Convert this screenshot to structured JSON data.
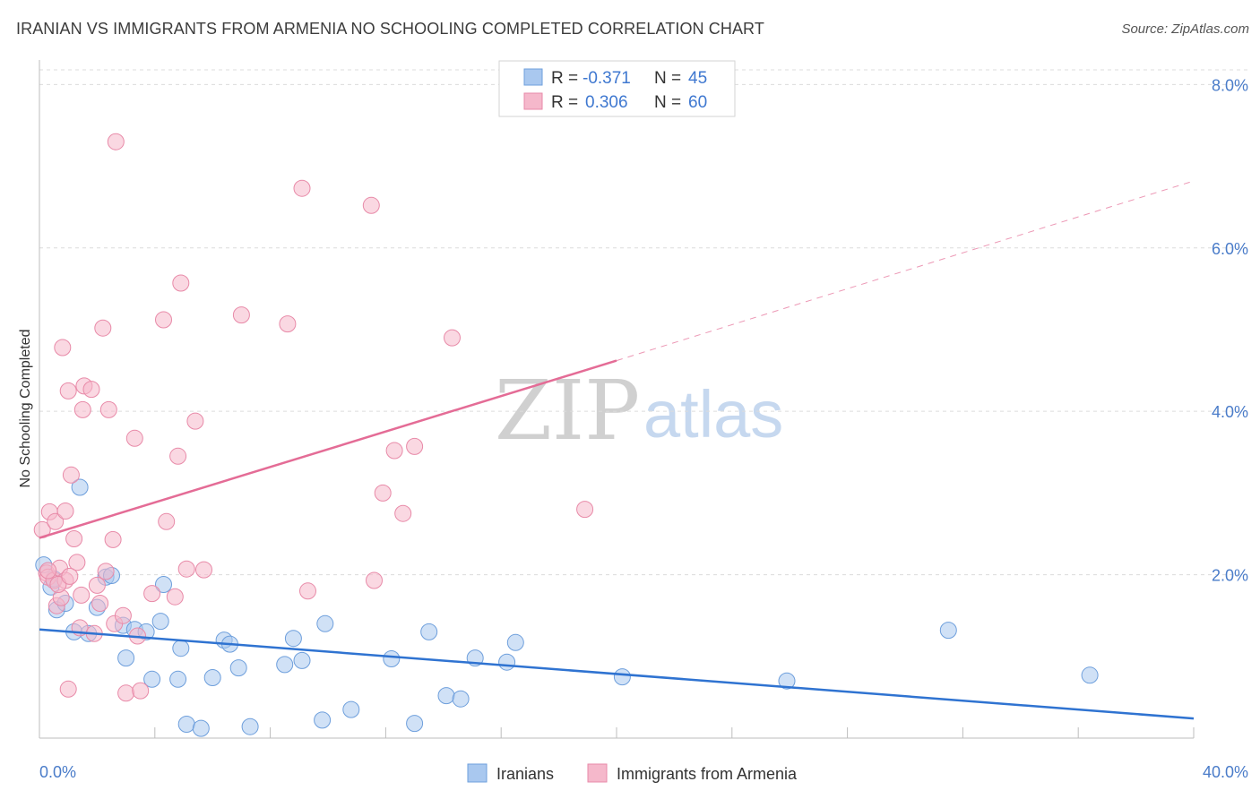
{
  "title": "IRANIAN VS IMMIGRANTS FROM ARMENIA NO SCHOOLING COMPLETED CORRELATION CHART",
  "source": "Source: ZipAtlas.com",
  "watermark": {
    "zip": "ZIP",
    "atlas": "atlas"
  },
  "legend_box": {
    "rows": [
      {
        "r_label": "R =",
        "r_value": "-0.371",
        "n_label": "N =",
        "n_value": "45",
        "color": "#a9c8ef"
      },
      {
        "r_label": "R =",
        "r_value": "0.306",
        "n_label": "N =",
        "n_value": "60",
        "color": "#f5b8cb"
      }
    ]
  },
  "bottom_legend": [
    {
      "label": "Iranians",
      "color": "#a9c8ef"
    },
    {
      "label": "Immigrants from Armenia",
      "color": "#f5b8cb"
    }
  ],
  "colors": {
    "blue_fill": "#a9c8ef",
    "blue_stroke": "#6e9fdc",
    "blue_line": "#2f73d1",
    "pink_fill": "#f5b8cb",
    "pink_stroke": "#e88aa8",
    "pink_line": "#e46c96",
    "grid": "#dcdcdc",
    "tick_text": "#4a7cc9"
  },
  "chart_data": {
    "type": "scatter",
    "title": "IRANIAN VS IMMIGRANTS FROM ARMENIA NO SCHOOLING COMPLETED CORRELATION CHART",
    "xlabel": "",
    "ylabel": "No Schooling Completed",
    "xlim": [
      0,
      40
    ],
    "ylim": [
      0,
      8.3
    ],
    "x_tick_labels": [
      "0.0%",
      "40.0%"
    ],
    "y_ticks": [
      2,
      4,
      6,
      8
    ],
    "y_tick_labels": [
      "2.0%",
      "4.0%",
      "6.0%",
      "8.0%"
    ],
    "grid": true,
    "legend_position": "top-center",
    "series": [
      {
        "name": "Iranians",
        "color": "#a9c8ef",
        "points": [
          [
            0.15,
            2.12
          ],
          [
            0.4,
            1.85
          ],
          [
            0.6,
            1.57
          ],
          [
            0.9,
            1.65
          ],
          [
            1.2,
            1.3
          ],
          [
            1.4,
            3.07
          ],
          [
            1.7,
            1.28
          ],
          [
            2.0,
            1.6
          ],
          [
            2.3,
            1.97
          ],
          [
            2.5,
            1.99
          ],
          [
            2.9,
            1.38
          ],
          [
            3.0,
            0.98
          ],
          [
            3.3,
            1.33
          ],
          [
            3.7,
            1.3
          ],
          [
            3.9,
            0.72
          ],
          [
            4.2,
            1.43
          ],
          [
            4.3,
            1.88
          ],
          [
            4.8,
            0.72
          ],
          [
            4.9,
            1.1
          ],
          [
            5.1,
            0.17
          ],
          [
            5.6,
            0.12
          ],
          [
            6.0,
            0.74
          ],
          [
            6.4,
            1.2
          ],
          [
            6.6,
            1.15
          ],
          [
            6.9,
            0.86
          ],
          [
            7.3,
            0.14
          ],
          [
            8.5,
            0.9
          ],
          [
            8.8,
            1.22
          ],
          [
            9.1,
            0.95
          ],
          [
            9.8,
            0.22
          ],
          [
            9.9,
            1.4
          ],
          [
            10.8,
            0.35
          ],
          [
            12.2,
            0.97
          ],
          [
            13.0,
            0.18
          ],
          [
            13.5,
            1.3
          ],
          [
            14.1,
            0.52
          ],
          [
            14.6,
            0.48
          ],
          [
            15.1,
            0.98
          ],
          [
            16.2,
            0.93
          ],
          [
            16.5,
            1.17
          ],
          [
            20.2,
            0.75
          ],
          [
            25.9,
            0.7
          ],
          [
            31.5,
            1.32
          ],
          [
            36.4,
            0.77
          ],
          [
            0.5,
            1.95
          ]
        ]
      },
      {
        "name": "Immigrants from Armenia",
        "color": "#f5b8cb",
        "points": [
          [
            0.1,
            2.55
          ],
          [
            0.25,
            2.02
          ],
          [
            0.3,
            1.97
          ],
          [
            0.35,
            2.77
          ],
          [
            0.5,
            1.93
          ],
          [
            0.55,
            2.65
          ],
          [
            0.6,
            1.62
          ],
          [
            0.7,
            2.08
          ],
          [
            0.75,
            1.72
          ],
          [
            0.8,
            4.78
          ],
          [
            0.9,
            1.93
          ],
          [
            0.9,
            2.78
          ],
          [
            1.0,
            0.6
          ],
          [
            1.0,
            4.25
          ],
          [
            1.1,
            3.22
          ],
          [
            1.2,
            2.44
          ],
          [
            1.3,
            2.15
          ],
          [
            1.4,
            1.35
          ],
          [
            1.45,
            1.75
          ],
          [
            1.5,
            4.02
          ],
          [
            1.55,
            4.31
          ],
          [
            1.8,
            4.27
          ],
          [
            1.9,
            1.28
          ],
          [
            2.0,
            1.87
          ],
          [
            2.1,
            1.65
          ],
          [
            2.2,
            5.02
          ],
          [
            2.3,
            2.04
          ],
          [
            2.4,
            4.02
          ],
          [
            2.55,
            2.43
          ],
          [
            2.6,
            1.4
          ],
          [
            2.65,
            7.3
          ],
          [
            2.9,
            1.5
          ],
          [
            3.0,
            0.55
          ],
          [
            3.3,
            3.67
          ],
          [
            3.4,
            1.25
          ],
          [
            3.5,
            0.58
          ],
          [
            3.9,
            1.77
          ],
          [
            4.3,
            5.12
          ],
          [
            4.4,
            2.65
          ],
          [
            4.7,
            1.73
          ],
          [
            4.8,
            3.45
          ],
          [
            4.9,
            5.57
          ],
          [
            5.1,
            2.07
          ],
          [
            5.4,
            3.88
          ],
          [
            5.7,
            2.06
          ],
          [
            7.0,
            5.18
          ],
          [
            8.6,
            5.07
          ],
          [
            9.1,
            6.73
          ],
          [
            9.3,
            1.8
          ],
          [
            11.5,
            6.52
          ],
          [
            11.6,
            1.93
          ],
          [
            11.9,
            3.0
          ],
          [
            12.3,
            3.52
          ],
          [
            12.6,
            2.75
          ],
          [
            13.0,
            3.57
          ],
          [
            14.3,
            4.9
          ],
          [
            18.9,
            2.8
          ],
          [
            0.3,
            2.05
          ],
          [
            0.65,
            1.88
          ],
          [
            1.05,
            1.98
          ]
        ]
      }
    ],
    "trend_lines": [
      {
        "series": "Iranians",
        "x": [
          0,
          40
        ],
        "y": [
          1.33,
          0.24
        ],
        "style": "solid"
      },
      {
        "series": "Immigrants from Armenia",
        "x": [
          0,
          20
        ],
        "y": [
          2.45,
          4.62
        ],
        "style": "solid"
      },
      {
        "series": "Immigrants from Armenia",
        "x": [
          20,
          40
        ],
        "y": [
          4.62,
          6.82
        ],
        "style": "dashed"
      }
    ]
  }
}
